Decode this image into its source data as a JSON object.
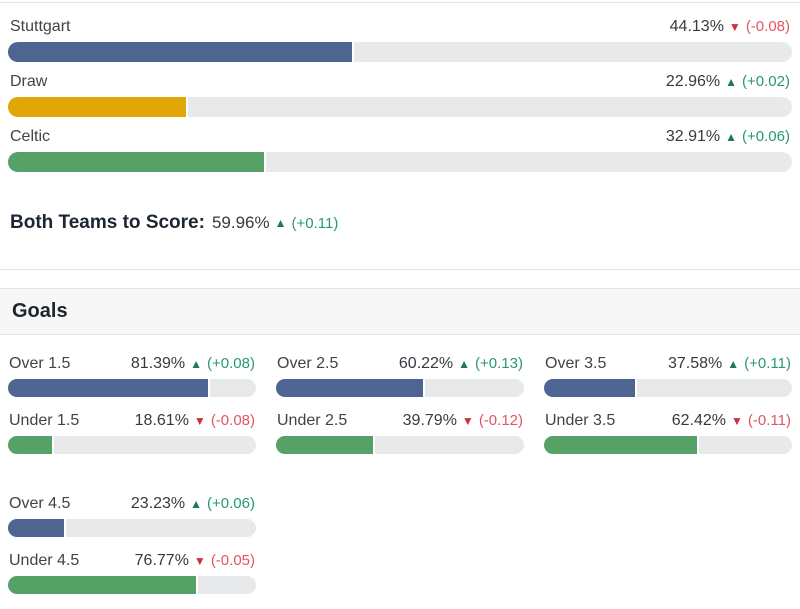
{
  "theme": {
    "bar-home": "#4e6591",
    "bar-draw": "#e0a506",
    "bar-away": "#56a266",
    "bar-over": "#4e6591",
    "bar-under": "#56a266",
    "track": "#e8e9ea",
    "up-strong": "#1e7a50",
    "up-soft": "#27996f",
    "down-strong": "#d02f3f",
    "down-soft": "#e25563",
    "label-text": "#3e4449",
    "value-text": "#343a40",
    "heading-text": "#1d2531",
    "border": "#e5e5e5",
    "band-bg": "#f7f7f7"
  },
  "match_outcomes": [
    {
      "label": "Stuttgart",
      "pct": 44.13,
      "pct_label": "44.13%",
      "arrow": "▼",
      "direction": "down",
      "change": "(-0.08)"
    },
    {
      "label": "Draw",
      "pct": 22.96,
      "pct_label": "22.96%",
      "arrow": "▲",
      "direction": "up",
      "change": "(+0.02)"
    },
    {
      "label": "Celtic",
      "pct": 32.91,
      "pct_label": "32.91%",
      "arrow": "▲",
      "direction": "up",
      "change": "(+0.06)"
    }
  ],
  "btts": {
    "label": "Both Teams to Score:",
    "pct": 59.96,
    "pct_label": "59.96%",
    "arrow": "▲",
    "direction": "up",
    "change": "(+0.11)"
  },
  "goals": {
    "title": "Goals",
    "cards": [
      {
        "over": {
          "label": "Over 1.5",
          "pct": 81.39,
          "pct_label": "81.39%",
          "arrow": "▲",
          "direction": "up",
          "change": "(+0.08)"
        },
        "under": {
          "label": "Under 1.5",
          "pct": 18.61,
          "pct_label": "18.61%",
          "arrow": "▼",
          "direction": "down",
          "change": "(-0.08)"
        }
      },
      {
        "over": {
          "label": "Over 2.5",
          "pct": 60.22,
          "pct_label": "60.22%",
          "arrow": "▲",
          "direction": "up",
          "change": "(+0.13)"
        },
        "under": {
          "label": "Under 2.5",
          "pct": 39.79,
          "pct_label": "39.79%",
          "arrow": "▼",
          "direction": "down",
          "change": "(-0.12)"
        }
      },
      {
        "over": {
          "label": "Over 3.5",
          "pct": 37.58,
          "pct_label": "37.58%",
          "arrow": "▲",
          "direction": "up",
          "change": "(+0.11)"
        },
        "under": {
          "label": "Under 3.5",
          "pct": 62.42,
          "pct_label": "62.42%",
          "arrow": "▼",
          "direction": "down",
          "change": "(-0.11)"
        }
      },
      {
        "over": {
          "label": "Over 4.5",
          "pct": 23.23,
          "pct_label": "23.23%",
          "arrow": "▲",
          "direction": "up",
          "change": "(+0.06)"
        },
        "under": {
          "label": "Under 4.5",
          "pct": 76.77,
          "pct_label": "76.77%",
          "arrow": "▼",
          "direction": "down",
          "change": "(-0.05)"
        }
      }
    ]
  }
}
